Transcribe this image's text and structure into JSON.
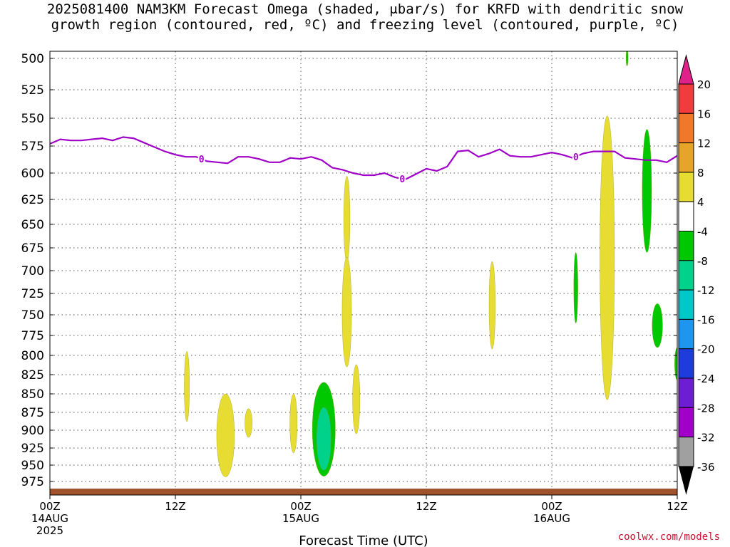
{
  "title_line1": "2025081400 NAM3KM Forecast Omega (shaded, μbar/s) for KRFD with dendritic snow",
  "title_line2": "growth region (contoured, red, ºC) and freezing level (contoured, purple, ºC)",
  "credit": "coolwx.com/models",
  "chart_data": {
    "type": "heatmap",
    "title": "2025081400 NAM3KM Forecast Omega (shaded, μbar/s) for KRFD with dendritic snow growth region (contoured, red, ºC) and freezing level (contoured, purple, ºC)",
    "xlabel": "Forecast Time (UTC)",
    "ylabel": "",
    "x_unit": "hours since 2025-08-14 00Z",
    "xlim": [
      0,
      60
    ],
    "ylim": [
      990,
      495
    ],
    "x_ticks": [
      {
        "value": 0,
        "label": "00Z",
        "sub1": "14AUG",
        "sub2": "2025"
      },
      {
        "value": 12,
        "label": "12Z",
        "sub1": "",
        "sub2": ""
      },
      {
        "value": 24,
        "label": "00Z",
        "sub1": "15AUG",
        "sub2": ""
      },
      {
        "value": 36,
        "label": "12Z",
        "sub1": "",
        "sub2": ""
      },
      {
        "value": 48,
        "label": "00Z",
        "sub1": "16AUG",
        "sub2": ""
      },
      {
        "value": 60,
        "label": "12Z",
        "sub1": "",
        "sub2": ""
      }
    ],
    "y_ticks": [
      500,
      525,
      550,
      575,
      600,
      625,
      650,
      675,
      700,
      725,
      750,
      775,
      800,
      825,
      850,
      875,
      900,
      925,
      950,
      975
    ],
    "colorbar": {
      "labels": [
        20,
        16,
        12,
        8,
        4,
        -4,
        -8,
        -12,
        -16,
        -20,
        -24,
        -28,
        -32,
        -36
      ],
      "bins": [
        {
          "from": 20,
          "to": 24,
          "color": "#e0218a"
        },
        {
          "from": 16,
          "to": 20,
          "color": "#f03c3c"
        },
        {
          "from": 12,
          "to": 16,
          "color": "#f07828"
        },
        {
          "from": 8,
          "to": 12,
          "color": "#e6a428"
        },
        {
          "from": 4,
          "to": 8,
          "color": "#e6dc32"
        },
        {
          "from": -4,
          "to": 4,
          "color": "#ffffff"
        },
        {
          "from": -8,
          "to": -4,
          "color": "#00c800"
        },
        {
          "from": -12,
          "to": -8,
          "color": "#00d28c"
        },
        {
          "from": -16,
          "to": -12,
          "color": "#00c8c8"
        },
        {
          "from": -20,
          "to": -16,
          "color": "#1e96f0"
        },
        {
          "from": -24,
          "to": -20,
          "color": "#1e3cdc"
        },
        {
          "from": -28,
          "to": -24,
          "color": "#6e1ed2"
        },
        {
          "from": -32,
          "to": -28,
          "color": "#a000c8"
        },
        {
          "from": -36,
          "to": -32,
          "color": "#a0a0a0"
        }
      ]
    },
    "freezing_level": {
      "label": "0",
      "color": "#a000c8",
      "label_at": [
        14.5,
        33.7,
        50.3
      ],
      "points": [
        [
          0,
          573
        ],
        [
          1,
          569
        ],
        [
          2,
          570
        ],
        [
          3,
          570
        ],
        [
          4,
          569
        ],
        [
          5,
          568
        ],
        [
          6,
          570
        ],
        [
          7,
          567
        ],
        [
          8,
          568
        ],
        [
          9,
          572
        ],
        [
          10,
          576
        ],
        [
          11,
          580
        ],
        [
          12,
          583
        ],
        [
          13,
          585
        ],
        [
          14,
          585
        ],
        [
          15,
          589
        ],
        [
          16,
          590
        ],
        [
          17,
          591
        ],
        [
          18,
          585
        ],
        [
          19,
          585
        ],
        [
          20,
          587
        ],
        [
          21,
          590
        ],
        [
          22,
          590
        ],
        [
          23,
          586
        ],
        [
          24,
          587
        ],
        [
          25,
          585
        ],
        [
          26,
          588
        ],
        [
          27,
          595
        ],
        [
          28,
          597
        ],
        [
          29,
          600
        ],
        [
          30,
          602
        ],
        [
          31,
          602
        ],
        [
          32,
          600
        ],
        [
          33,
          604
        ],
        [
          34,
          606
        ],
        [
          35,
          601
        ],
        [
          36,
          596
        ],
        [
          37,
          598
        ],
        [
          38,
          594
        ],
        [
          39,
          580
        ],
        [
          40,
          579
        ],
        [
          41,
          585
        ],
        [
          42,
          582
        ],
        [
          43,
          578
        ],
        [
          44,
          584
        ],
        [
          45,
          585
        ],
        [
          46,
          585
        ],
        [
          47,
          583
        ],
        [
          48,
          581
        ],
        [
          49,
          583
        ],
        [
          50,
          586
        ],
        [
          51,
          582
        ],
        [
          52,
          580
        ],
        [
          53,
          580
        ],
        [
          54,
          580
        ],
        [
          55,
          586
        ],
        [
          56,
          587
        ],
        [
          57,
          588
        ],
        [
          58,
          588
        ],
        [
          59,
          590
        ],
        [
          60,
          584
        ]
      ]
    },
    "surface_color": "#a0522d",
    "surface_band": [
      975,
      990
    ],
    "omega_regions": [
      {
        "value": 6,
        "color": "#e6dc32",
        "x": 13.1,
        "x_halfwidth": 0.25,
        "p_top": 795,
        "p_bottom": 888
      },
      {
        "value": 6,
        "color": "#e6dc32",
        "x": 16.8,
        "x_halfwidth": 0.85,
        "p_top": 850,
        "p_bottom": 968
      },
      {
        "value": 6,
        "color": "#e6dc32",
        "x": 19.0,
        "x_halfwidth": 0.35,
        "p_top": 870,
        "p_bottom": 910
      },
      {
        "value": 6,
        "color": "#e6dc32",
        "x": 23.3,
        "x_halfwidth": 0.35,
        "p_top": 850,
        "p_bottom": 932
      },
      {
        "value": -6,
        "color": "#00c800",
        "x": 26.2,
        "x_halfwidth": 1.1,
        "p_top": 835,
        "p_bottom": 967
      },
      {
        "value": -10,
        "color": "#00d28c",
        "x": 26.2,
        "x_halfwidth": 0.7,
        "p_top": 868,
        "p_bottom": 958
      },
      {
        "value": 6,
        "color": "#e6dc32",
        "x": 28.4,
        "x_halfwidth": 0.3,
        "p_top": 603,
        "p_bottom": 690
      },
      {
        "value": 6,
        "color": "#e6dc32",
        "x": 28.4,
        "x_halfwidth": 0.45,
        "p_top": 685,
        "p_bottom": 815
      },
      {
        "value": 6,
        "color": "#e6dc32",
        "x": 29.3,
        "x_halfwidth": 0.35,
        "p_top": 812,
        "p_bottom": 905
      },
      {
        "value": 6,
        "color": "#e6dc32",
        "x": 42.3,
        "x_halfwidth": 0.3,
        "p_top": 690,
        "p_bottom": 792
      },
      {
        "value": -6,
        "color": "#00c800",
        "x": 50.3,
        "x_halfwidth": 0.2,
        "p_top": 680,
        "p_bottom": 760
      },
      {
        "value": 6,
        "color": "#e6dc32",
        "x": 53.3,
        "x_halfwidth": 0.7,
        "p_top": 548,
        "p_bottom": 858
      },
      {
        "value": -6,
        "color": "#00c800",
        "x": 57.1,
        "x_halfwidth": 0.45,
        "p_top": 560,
        "p_bottom": 680
      },
      {
        "value": -6,
        "color": "#00c800",
        "x": 58.1,
        "x_halfwidth": 0.5,
        "p_top": 737,
        "p_bottom": 790
      },
      {
        "value": -6,
        "color": "#00c800",
        "x": 60.0,
        "x_halfwidth": 0.25,
        "p_top": 790,
        "p_bottom": 832
      },
      {
        "value": -6,
        "color": "#00c800",
        "x": 55.2,
        "x_halfwidth": 0.1,
        "p_top": 492,
        "p_bottom": 506
      }
    ]
  }
}
